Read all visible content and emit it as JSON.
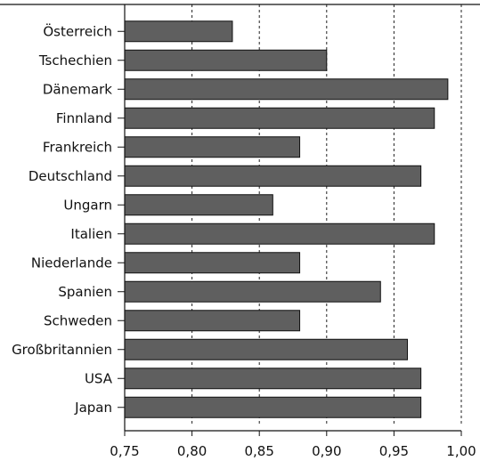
{
  "chart_data": {
    "type": "bar",
    "orientation": "horizontal",
    "title": "",
    "xlabel": "",
    "ylabel": "",
    "categories": [
      "Österreich",
      "Tschechien",
      "Dänemark",
      "Finnland",
      "Frankreich",
      "Deutschland",
      "Ungarn",
      "Italien",
      "Niederlande",
      "Spanien",
      "Schweden",
      "Großbritannien",
      "USA",
      "Japan"
    ],
    "values": [
      0.83,
      0.9,
      0.99,
      0.98,
      0.88,
      0.97,
      0.86,
      0.98,
      0.88,
      0.94,
      0.88,
      0.96,
      0.97,
      0.97
    ],
    "xlim": [
      0.75,
      1.0
    ],
    "xticks": [
      0.75,
      0.8,
      0.85,
      0.9,
      0.95,
      1.0
    ],
    "xtick_labels": [
      "0,75",
      "0,80",
      "0,85",
      "0,90",
      "0,95",
      "1,00"
    ],
    "gridlines": "vertical dashed",
    "colors": {
      "bar": "#5f5f5f",
      "bar_edge": "#111111"
    }
  }
}
